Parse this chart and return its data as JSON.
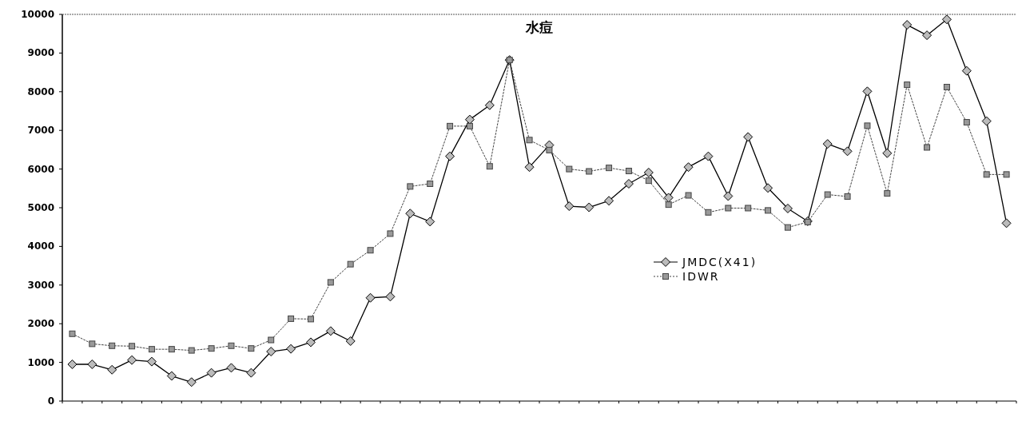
{
  "chart_data": {
    "type": "line",
    "title": "水痘",
    "categories": [
      null,
      null,
      null,
      null,
      null,
      null,
      null,
      null,
      null,
      null,
      null,
      null,
      null,
      null,
      null,
      null,
      null,
      null,
      null,
      null,
      null,
      null,
      null,
      null,
      null,
      null,
      null,
      null,
      null,
      null,
      null,
      null,
      null,
      null,
      null,
      null,
      null,
      null,
      null,
      null,
      null,
      null,
      null,
      null,
      null,
      null,
      null,
      null
    ],
    "series": [
      {
        "name": "JMDC(X41)",
        "color": "#000000",
        "marker": "diamond",
        "line_style": "solid",
        "values": [
          950,
          950,
          810,
          1060,
          1020,
          650,
          490,
          730,
          860,
          730,
          1280,
          1350,
          1520,
          1810,
          1550,
          2670,
          2700,
          4850,
          4640,
          6330,
          7280,
          7650,
          8820,
          6050,
          6620,
          5040,
          5010,
          5180,
          5620,
          5910,
          5260,
          6050,
          6330,
          5300,
          6830,
          5510,
          4980,
          4650,
          6650,
          6460,
          8010,
          6410,
          9730,
          9460,
          9870,
          8540,
          7240,
          4600
        ]
      },
      {
        "name": "IDWR",
        "color": "#444444",
        "marker": "square",
        "line_style": "dotted",
        "values": [
          1740,
          1480,
          1430,
          1420,
          1340,
          1340,
          1310,
          1360,
          1430,
          1360,
          1580,
          2130,
          2120,
          3070,
          3540,
          3900,
          4330,
          5550,
          5620,
          7110,
          7110,
          6070,
          8820,
          6750,
          6490,
          6000,
          5940,
          6030,
          5950,
          5700,
          5080,
          5320,
          4880,
          4990,
          4990,
          4930,
          4490,
          4630,
          5340,
          5290,
          7120,
          5370,
          8180,
          6560,
          8120,
          7210,
          5860,
          5860
        ]
      }
    ],
    "ylim": [
      0,
      10000
    ],
    "yticks": [
      0,
      1000,
      2000,
      3000,
      4000,
      5000,
      6000,
      7000,
      8000,
      9000,
      10000
    ],
    "grid": false,
    "legend": "right"
  }
}
